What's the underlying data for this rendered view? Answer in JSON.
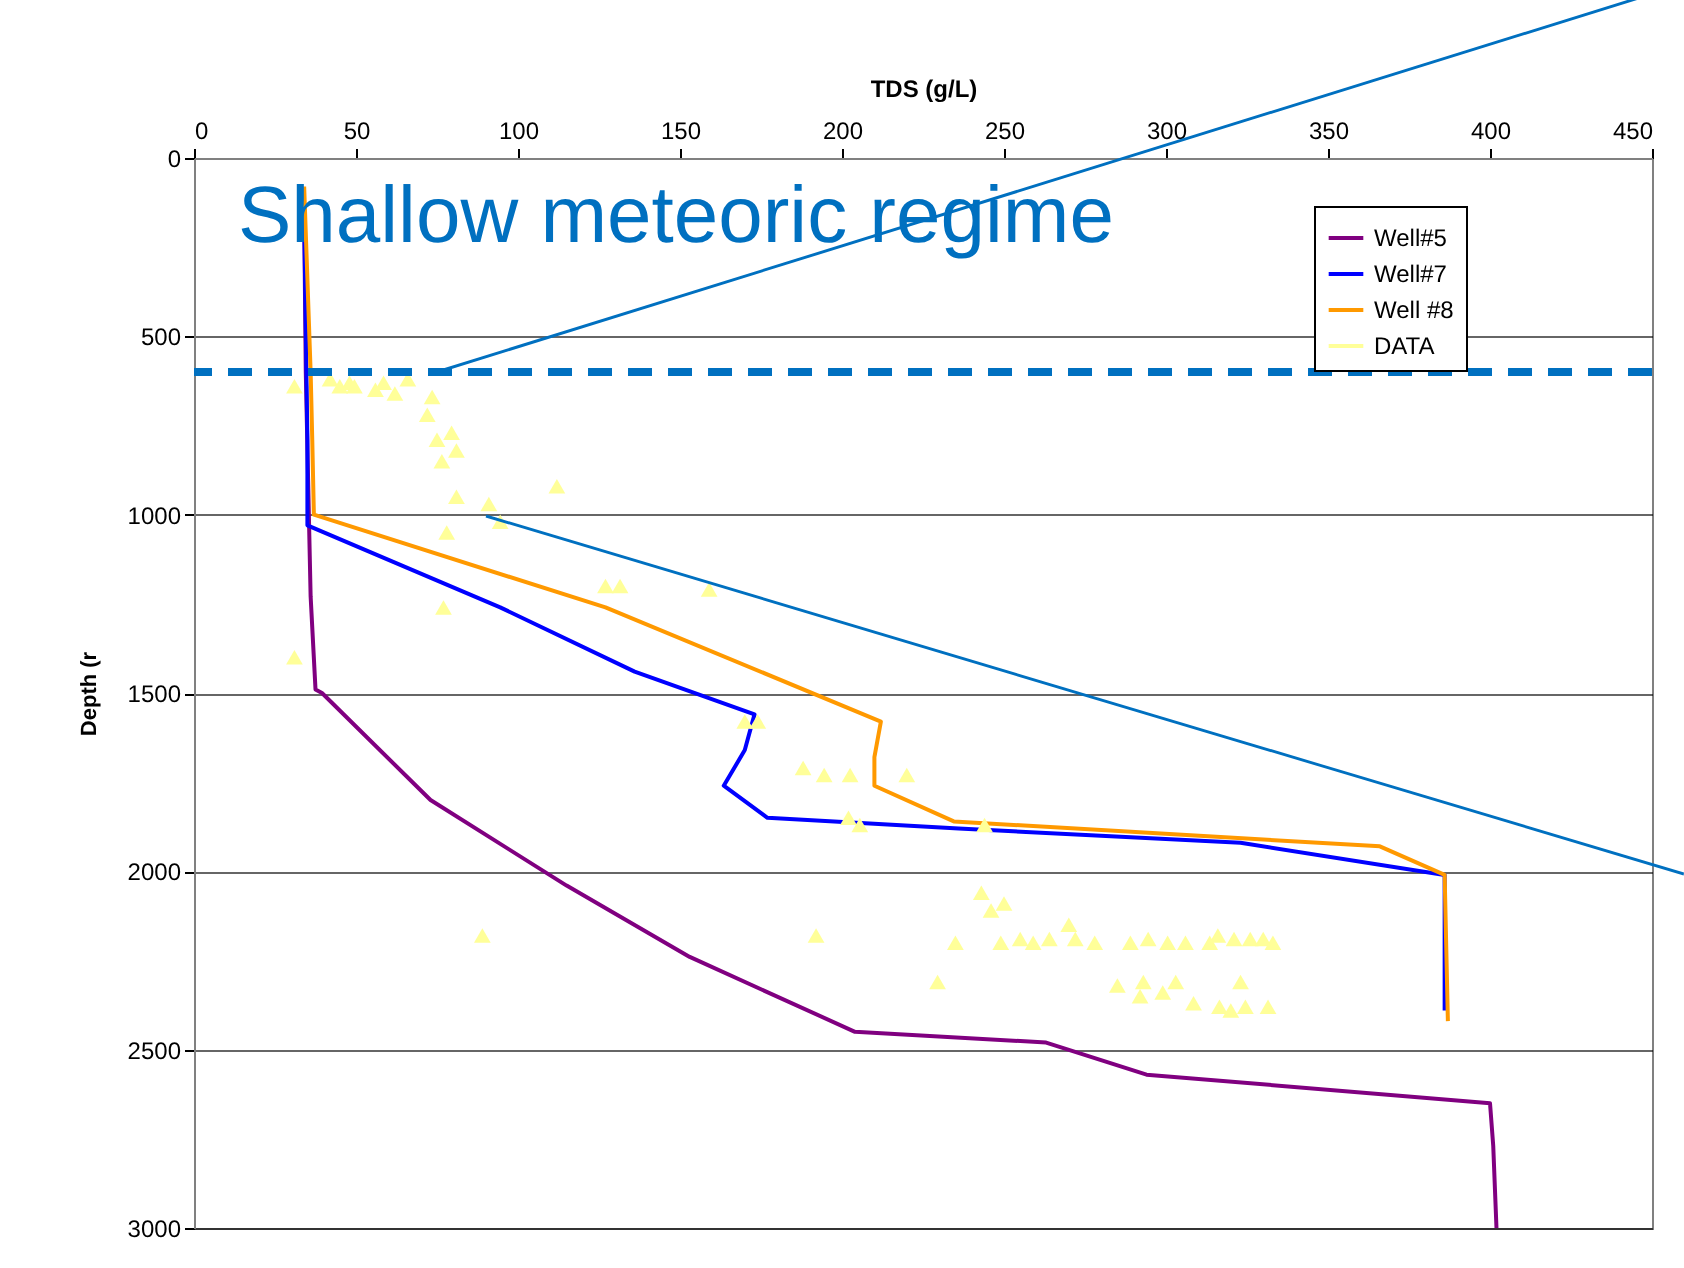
{
  "chart_data": {
    "type": "line",
    "xlabel": "TDS (g/L)",
    "ylabel": "Depth (r",
    "xlim": [
      0,
      450
    ],
    "xticks": [
      0,
      50,
      100,
      150,
      200,
      250,
      300,
      350,
      400,
      450
    ],
    "ylim": [
      3000,
      0
    ],
    "yticks": [
      0,
      500,
      1000,
      1500,
      2000,
      2500,
      3000
    ],
    "grid": "y",
    "legend": "top right",
    "line_style": "solid",
    "annotations": [
      "Shallow meteoric regime"
    ],
    "ref_lines": [
      {
        "axis": "y",
        "value": 600,
        "color": "#0070c0",
        "line_style": "dashed"
      }
    ],
    "series": [
      {
        "name": "Well#5",
        "color": "#800080",
        "x": [
          34,
          34.5,
          36,
          37.5,
          39.5,
          73,
          115,
          153,
          204,
          263,
          294,
          400,
          401,
          402
        ],
        "values": [
          160,
          600,
          1230,
          1490,
          1500,
          1800,
          2040,
          2240,
          2450,
          2480,
          2570,
          2650,
          2770,
          3000
        ]
      },
      {
        "name": "Well#7",
        "color": "#0000ff",
        "x": [
          34,
          35,
          35,
          94.5,
          136,
          173,
          170,
          163.5,
          177,
          236,
          323,
          386,
          386
        ],
        "values": [
          160,
          790,
          1030,
          1260,
          1440,
          1560,
          1660,
          1760,
          1850,
          1880,
          1920,
          2010,
          2390
        ]
      },
      {
        "name": "Well #8",
        "color": "#ff9900",
        "x": [
          34,
          36,
          36.5,
          37,
          127,
          212,
          210,
          210,
          234.5,
          366,
          386,
          387
        ],
        "values": [
          80,
          600,
          790,
          1000,
          1260,
          1580,
          1680,
          1760,
          1860,
          1930,
          2010,
          2420
        ]
      },
      {
        "name": "DATA",
        "color": "#ffff99",
        "type": "scatter",
        "marker": "triangle",
        "x": [
          31,
          42,
          45,
          48,
          49.5,
          56,
          58.5,
          62,
          66,
          73.5,
          72,
          75,
          79.5,
          76.5,
          81,
          81,
          91,
          94.5,
          112,
          78,
          127,
          131.5,
          159,
          77,
          31,
          170,
          174,
          188,
          194.5,
          202.5,
          220,
          202,
          205.5,
          244,
          89,
          192,
          243,
          250,
          246,
          235,
          229.5,
          249,
          255,
          259,
          264,
          270,
          272,
          278,
          289,
          294.5,
          300.5,
          306,
          313.5,
          316,
          321,
          326,
          330,
          333,
          285,
          293,
          292,
          299,
          303,
          308.5,
          316.5,
          320,
          324.5,
          331.5,
          323
        ],
        "values": [
          640,
          620,
          640,
          630,
          640,
          650,
          630,
          660,
          620,
          670,
          720,
          790,
          770,
          850,
          820,
          950,
          970,
          1020,
          920,
          1050,
          1200,
          1200,
          1210,
          1260,
          1400,
          1580,
          1580,
          1710,
          1730,
          1730,
          1730,
          1850,
          1870,
          1870,
          2180,
          2180,
          2060,
          2090,
          2110,
          2200,
          2310,
          2200,
          2190,
          2200,
          2190,
          2150,
          2190,
          2200,
          2200,
          2190,
          2200,
          2200,
          2200,
          2180,
          2190,
          2190,
          2190,
          2200,
          2320,
          2310,
          2350,
          2340,
          2310,
          2370,
          2380,
          2390,
          2380,
          2380,
          2310
        ]
      }
    ]
  }
}
